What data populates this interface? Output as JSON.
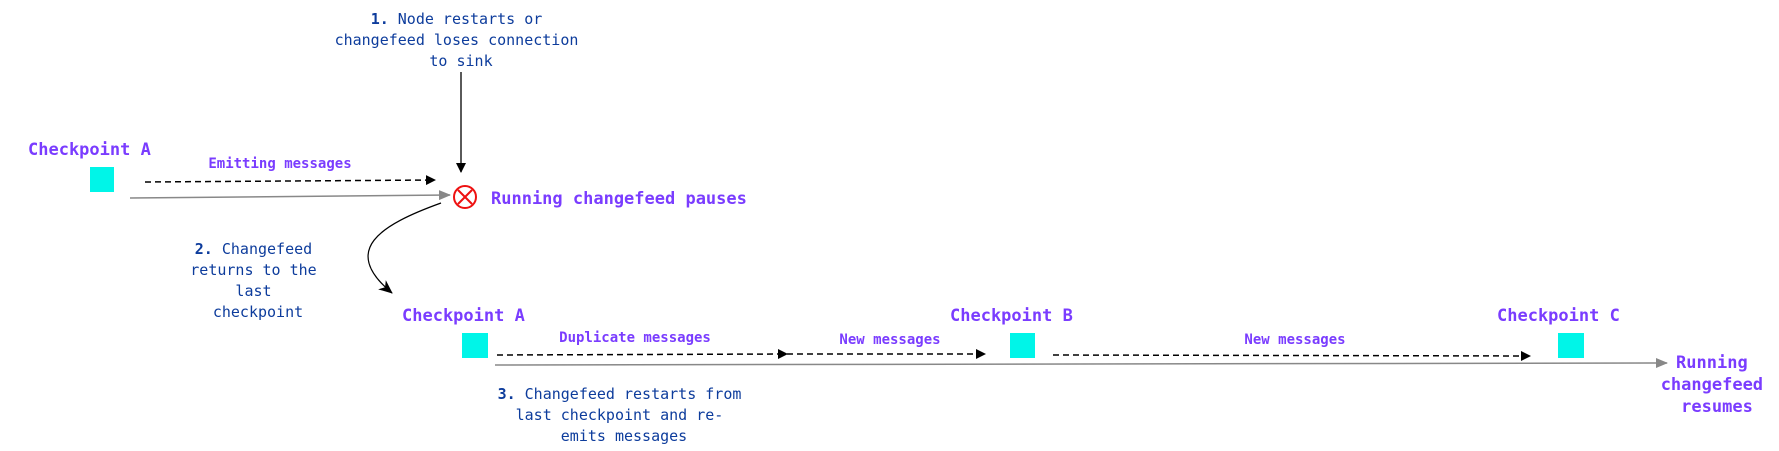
{
  "colors": {
    "label": "#7a3cff",
    "note": "#0d3c9c",
    "checkpoint": "#00f5e8",
    "timeline": "#888888",
    "error": "#ee1111"
  },
  "step1": {
    "num": "1.",
    "lines": [
      "Node restarts or",
      "changefeed loses connection",
      "to sink"
    ]
  },
  "step2": {
    "num": "2.",
    "lines": [
      "Changefeed",
      "returns to the",
      "last",
      "checkpoint"
    ]
  },
  "step3": {
    "num": "3.",
    "lines": [
      "Changefeed restarts from",
      "last checkpoint and re-",
      "emits messages"
    ]
  },
  "row1": {
    "checkpoint": "Checkpoint A",
    "emitting": "Emitting messages",
    "pause": "Running changefeed pauses",
    "pause_icon": "error-circle-x-icon"
  },
  "row2": {
    "checkpoints": [
      "Checkpoint A",
      "Checkpoint B",
      "Checkpoint C"
    ],
    "segments": [
      "Duplicate messages",
      "New messages",
      "New messages"
    ],
    "resume": [
      "Running",
      "changefeed",
      "resumes"
    ]
  }
}
